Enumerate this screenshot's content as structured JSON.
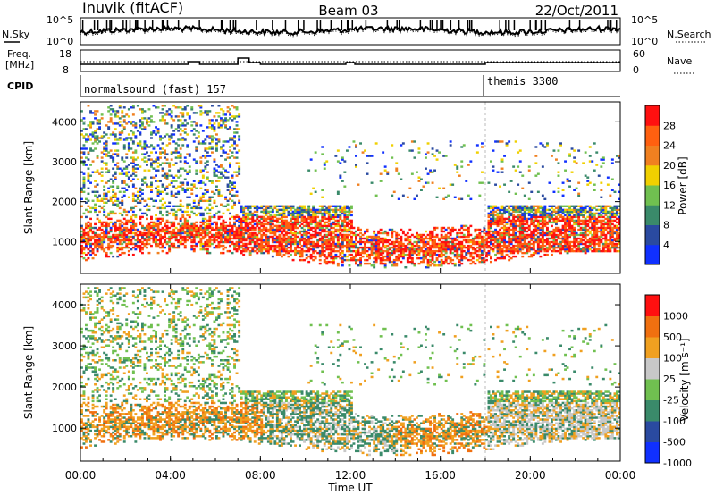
{
  "header": {
    "station": "Inuvik (fitACF)",
    "beam": "Beam 03",
    "date": "22/Oct/2011"
  },
  "nsky_panel": {
    "left_label": "N.Sky",
    "right_label": "N.Search",
    "left_ticks": [
      "10^5",
      "10^0"
    ],
    "right_ticks": [
      "10^5",
      "10^0"
    ]
  },
  "freq_panel": {
    "left_label_1": "Freq.",
    "left_label_2": "[MHz]",
    "right_label": "Nave",
    "left_ticks": [
      "18",
      "8"
    ],
    "right_ticks": [
      "60",
      "0"
    ]
  },
  "cpid_panel": {
    "label": "CPID",
    "modes": [
      {
        "name": "normalsound (fast) 157",
        "start_hour": 0
      },
      {
        "name": "themis 3300",
        "start_hour": 18
      }
    ]
  },
  "chart_data": [
    {
      "type": "heatmap",
      "name": "power-panel",
      "xlabel": "",
      "ylabel": "Slant Range [km]",
      "xlim": [
        0,
        24
      ],
      "ylim": [
        200,
        4500
      ],
      "yticks": [
        1000,
        2000,
        3000,
        4000
      ],
      "colorbar_label": "Power [dB]",
      "colorbar_ticks": [
        "4",
        "8",
        "12",
        "16",
        "20",
        "24",
        "28"
      ],
      "colorbar_colors": [
        "#1030ff",
        "#2a4aa0",
        "#3a8a6a",
        "#70c050",
        "#f0d000",
        "#f08020",
        "#ff6010",
        "#ff1010"
      ]
    },
    {
      "type": "heatmap",
      "name": "velocity-panel",
      "xlabel": "Time UT",
      "ylabel": "Slant Range [km]",
      "xlim": [
        0,
        24
      ],
      "ylim": [
        200,
        4500
      ],
      "yticks": [
        1000,
        2000,
        3000,
        4000
      ],
      "xticks": [
        "00:00",
        "04:00",
        "08:00",
        "12:00",
        "16:00",
        "20:00",
        "00:00"
      ],
      "colorbar_label": "Velocity [m s⁻¹]",
      "colorbar_ticks": [
        "1000",
        "500",
        "100",
        "25",
        "-25",
        "-100",
        "-500",
        "-1000"
      ],
      "colorbar_colors": [
        "#1030ff",
        "#2a4aa0",
        "#3a8a6a",
        "#70c050",
        "#c8c8c8",
        "#f0a020",
        "#f07010",
        "#ff1010"
      ]
    }
  ]
}
